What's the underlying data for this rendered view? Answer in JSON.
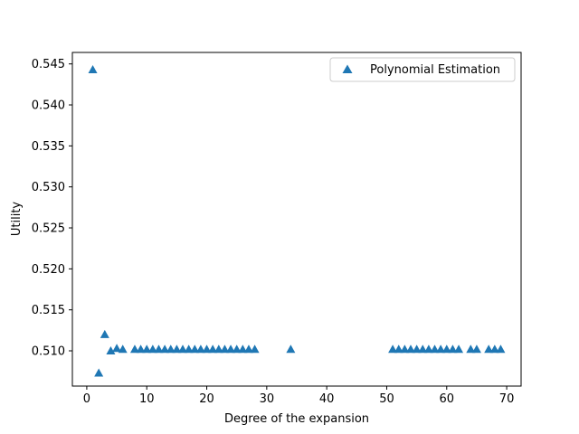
{
  "chart_data": {
    "type": "scatter",
    "title": "",
    "xlabel": "Degree of the expansion",
    "ylabel": "Utility",
    "xlim": [
      -2.4,
      72.4
    ],
    "ylim": [
      0.5057,
      0.5464
    ],
    "xticks": [
      0,
      10,
      20,
      30,
      40,
      50,
      60,
      70
    ],
    "yticks": [
      0.51,
      0.515,
      0.52,
      0.525,
      0.53,
      0.535,
      0.54,
      0.545
    ],
    "ytick_labels": [
      "0.510",
      "0.515",
      "0.520",
      "0.525",
      "0.530",
      "0.535",
      "0.540",
      "0.545"
    ],
    "grid": false,
    "legend_position": "upper right",
    "marker": "triangle",
    "color": "#1f77b4",
    "series": [
      {
        "name": "Polynomial Estimation",
        "x": [
          1,
          2,
          3,
          4,
          5,
          6,
          8,
          9,
          10,
          11,
          12,
          13,
          14,
          15,
          16,
          17,
          18,
          19,
          20,
          21,
          22,
          23,
          24,
          25,
          26,
          27,
          28,
          34,
          51,
          52,
          53,
          54,
          55,
          56,
          57,
          58,
          59,
          60,
          61,
          62,
          64,
          65,
          67,
          68,
          69
        ],
        "y": [
          0.5443,
          0.5073,
          0.512,
          0.51,
          0.5103,
          0.5102,
          0.5102,
          0.5102,
          0.5102,
          0.5102,
          0.5102,
          0.5102,
          0.5102,
          0.5102,
          0.5102,
          0.5102,
          0.5102,
          0.5102,
          0.5102,
          0.5102,
          0.5102,
          0.5102,
          0.5102,
          0.5102,
          0.5102,
          0.5102,
          0.5102,
          0.5102,
          0.5102,
          0.5102,
          0.5102,
          0.5102,
          0.5102,
          0.5102,
          0.5102,
          0.5102,
          0.5102,
          0.5102,
          0.5102,
          0.5102,
          0.5102,
          0.5102,
          0.5102,
          0.5102,
          0.5102
        ]
      }
    ]
  }
}
